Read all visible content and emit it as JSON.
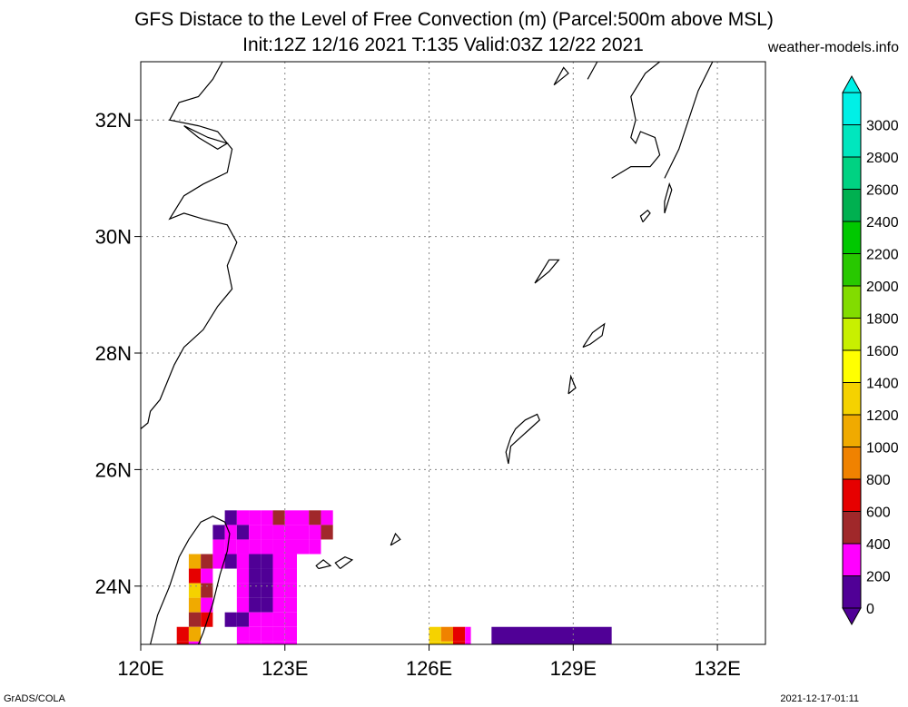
{
  "title_line1": "GFS Distace to the Level of Free Convection (m) (Parcel:500m above MSL)",
  "title_line2": "Init:12Z 12/16 2021 T:135 Valid:03Z 12/22 2021",
  "site": "weather-models.info",
  "footer_left": "GrADS/COLA",
  "footer_right": "2021-12-17-01:11",
  "map": {
    "lon_range": [
      120,
      133
    ],
    "lat_range": [
      23,
      33
    ],
    "lon_ticks": [
      {
        "v": 120,
        "label": "120E"
      },
      {
        "v": 123,
        "label": "123E"
      },
      {
        "v": 126,
        "label": "126E"
      },
      {
        "v": 129,
        "label": "129E"
      },
      {
        "v": 132,
        "label": "132E"
      }
    ],
    "lat_ticks": [
      {
        "v": 24,
        "label": "24N"
      },
      {
        "v": 26,
        "label": "26N"
      },
      {
        "v": 28,
        "label": "28N"
      },
      {
        "v": 30,
        "label": "30N"
      },
      {
        "v": 32,
        "label": "32N"
      }
    ],
    "grid": "dotted"
  },
  "colorbar": {
    "levels": [
      0,
      200,
      400,
      600,
      800,
      1000,
      1200,
      1400,
      1600,
      1800,
      2000,
      2200,
      2400,
      2600,
      2800,
      3000
    ],
    "labels": [
      "0",
      "200",
      "400",
      "600",
      "800",
      "1000",
      "1200",
      "1400",
      "1600",
      "1800",
      "2000",
      "2200",
      "2400",
      "2600",
      "2800",
      "3000"
    ],
    "colors": [
      "#500096",
      "#ff00ff",
      "#a0282a",
      "#e60000",
      "#f08200",
      "#f0aa00",
      "#f5d200",
      "#ffff00",
      "#c8f000",
      "#82dc00",
      "#28c800",
      "#00c800",
      "#00b050",
      "#00d282",
      "#00e6be",
      "#00f0e6"
    ]
  },
  "cells": [
    {
      "lon": 121.0,
      "lat": 24.3,
      "w": 0.25,
      "h": 0.25,
      "c": "#f0aa00"
    },
    {
      "lon": 121.25,
      "lat": 24.3,
      "w": 0.25,
      "h": 0.25,
      "c": "#a0282a"
    },
    {
      "lon": 121.0,
      "lat": 24.05,
      "w": 0.25,
      "h": 0.25,
      "c": "#e60000"
    },
    {
      "lon": 121.25,
      "lat": 24.05,
      "w": 0.25,
      "h": 0.25,
      "c": "#ff00ff"
    },
    {
      "lon": 121.0,
      "lat": 23.8,
      "w": 0.25,
      "h": 0.25,
      "c": "#f5d200"
    },
    {
      "lon": 121.25,
      "lat": 23.8,
      "w": 0.25,
      "h": 0.25,
      "c": "#a0282a"
    },
    {
      "lon": 121.0,
      "lat": 23.55,
      "w": 0.25,
      "h": 0.25,
      "c": "#f0aa00"
    },
    {
      "lon": 121.25,
      "lat": 23.55,
      "w": 0.25,
      "h": 0.25,
      "c": "#ff00ff"
    },
    {
      "lon": 121.0,
      "lat": 23.3,
      "w": 0.25,
      "h": 0.25,
      "c": "#a0282a"
    },
    {
      "lon": 121.25,
      "lat": 23.3,
      "w": 0.25,
      "h": 0.25,
      "c": "#e60000"
    },
    {
      "lon": 120.75,
      "lat": 23.05,
      "w": 0.25,
      "h": 0.25,
      "c": "#e60000"
    },
    {
      "lon": 121.0,
      "lat": 23.05,
      "w": 0.25,
      "h": 0.25,
      "c": "#f0aa00"
    },
    {
      "lon": 120.75,
      "lat": 22.8,
      "w": 0.25,
      "h": 0.25,
      "c": "#e60000"
    },
    {
      "lon": 121.0,
      "lat": 22.8,
      "w": 0.25,
      "h": 0.25,
      "c": "#ff00ff"
    },
    {
      "lon": 121.5,
      "lat": 24.55,
      "w": 0.25,
      "h": 0.25,
      "c": "#ff00ff"
    },
    {
      "lon": 121.75,
      "lat": 24.55,
      "w": 0.25,
      "h": 0.25,
      "c": "#ff00ff"
    },
    {
      "lon": 121.5,
      "lat": 24.8,
      "w": 0.25,
      "h": 0.25,
      "c": "#500096"
    },
    {
      "lon": 121.75,
      "lat": 24.8,
      "w": 0.25,
      "h": 0.25,
      "c": "#ff00ff"
    },
    {
      "lon": 121.5,
      "lat": 24.3,
      "w": 0.25,
      "h": 0.25,
      "c": "#ff00ff"
    },
    {
      "lon": 121.75,
      "lat": 24.3,
      "w": 0.25,
      "h": 0.25,
      "c": "#500096"
    },
    {
      "lon": 121.75,
      "lat": 25.05,
      "w": 0.25,
      "h": 0.25,
      "c": "#500096"
    },
    {
      "lon": 122.0,
      "lat": 25.05,
      "w": 0.25,
      "h": 0.25,
      "c": "#ff00ff"
    },
    {
      "lon": 122.25,
      "lat": 25.05,
      "w": 0.25,
      "h": 0.25,
      "c": "#ff00ff"
    },
    {
      "lon": 122.5,
      "lat": 25.05,
      "w": 0.25,
      "h": 0.25,
      "c": "#ff00ff"
    },
    {
      "lon": 122.75,
      "lat": 25.05,
      "w": 0.25,
      "h": 0.25,
      "c": "#a0282a"
    },
    {
      "lon": 123.0,
      "lat": 25.05,
      "w": 0.25,
      "h": 0.25,
      "c": "#ff00ff"
    },
    {
      "lon": 123.25,
      "lat": 25.05,
      "w": 0.25,
      "h": 0.25,
      "c": "#ff00ff"
    },
    {
      "lon": 123.5,
      "lat": 25.05,
      "w": 0.25,
      "h": 0.25,
      "c": "#a0282a"
    },
    {
      "lon": 123.75,
      "lat": 25.05,
      "w": 0.25,
      "h": 0.25,
      "c": "#ff00ff"
    },
    {
      "lon": 122.0,
      "lat": 24.8,
      "w": 0.25,
      "h": 0.25,
      "c": "#500096"
    },
    {
      "lon": 122.25,
      "lat": 24.8,
      "w": 0.25,
      "h": 0.25,
      "c": "#ff00ff"
    },
    {
      "lon": 122.5,
      "lat": 24.8,
      "w": 0.25,
      "h": 0.25,
      "c": "#ff00ff"
    },
    {
      "lon": 122.75,
      "lat": 24.8,
      "w": 0.25,
      "h": 0.25,
      "c": "#ff00ff"
    },
    {
      "lon": 123.0,
      "lat": 24.8,
      "w": 0.25,
      "h": 0.25,
      "c": "#ff00ff"
    },
    {
      "lon": 123.25,
      "lat": 24.8,
      "w": 0.25,
      "h": 0.25,
      "c": "#ff00ff"
    },
    {
      "lon": 123.5,
      "lat": 24.8,
      "w": 0.25,
      "h": 0.25,
      "c": "#ff00ff"
    },
    {
      "lon": 123.75,
      "lat": 24.8,
      "w": 0.25,
      "h": 0.25,
      "c": "#a0282a"
    },
    {
      "lon": 122.0,
      "lat": 24.55,
      "w": 0.25,
      "h": 0.25,
      "c": "#ff00ff"
    },
    {
      "lon": 122.25,
      "lat": 24.55,
      "w": 0.25,
      "h": 0.25,
      "c": "#ff00ff"
    },
    {
      "lon": 122.5,
      "lat": 24.55,
      "w": 0.25,
      "h": 0.25,
      "c": "#ff00ff"
    },
    {
      "lon": 122.75,
      "lat": 24.55,
      "w": 0.25,
      "h": 0.25,
      "c": "#ff00ff"
    },
    {
      "lon": 123.0,
      "lat": 24.55,
      "w": 0.25,
      "h": 0.25,
      "c": "#ff00ff"
    },
    {
      "lon": 123.25,
      "lat": 24.55,
      "w": 0.25,
      "h": 0.25,
      "c": "#ff00ff"
    },
    {
      "lon": 123.5,
      "lat": 24.55,
      "w": 0.25,
      "h": 0.25,
      "c": "#ff00ff"
    },
    {
      "lon": 122.0,
      "lat": 24.3,
      "w": 0.25,
      "h": 0.25,
      "c": "#ff00ff"
    },
    {
      "lon": 122.25,
      "lat": 24.3,
      "w": 0.25,
      "h": 0.25,
      "c": "#500096"
    },
    {
      "lon": 122.5,
      "lat": 24.3,
      "w": 0.25,
      "h": 0.25,
      "c": "#500096"
    },
    {
      "lon": 122.75,
      "lat": 24.3,
      "w": 0.25,
      "h": 0.25,
      "c": "#ff00ff"
    },
    {
      "lon": 123.0,
      "lat": 24.3,
      "w": 0.25,
      "h": 0.25,
      "c": "#ff00ff"
    },
    {
      "lon": 122.0,
      "lat": 24.05,
      "w": 0.25,
      "h": 0.25,
      "c": "#ff00ff"
    },
    {
      "lon": 122.25,
      "lat": 24.05,
      "w": 0.25,
      "h": 0.25,
      "c": "#500096"
    },
    {
      "lon": 122.5,
      "lat": 24.05,
      "w": 0.25,
      "h": 0.25,
      "c": "#500096"
    },
    {
      "lon": 122.75,
      "lat": 24.05,
      "w": 0.25,
      "h": 0.25,
      "c": "#ff00ff"
    },
    {
      "lon": 123.0,
      "lat": 24.05,
      "w": 0.25,
      "h": 0.25,
      "c": "#ff00ff"
    },
    {
      "lon": 122.0,
      "lat": 23.8,
      "w": 0.25,
      "h": 0.25,
      "c": "#ff00ff"
    },
    {
      "lon": 122.25,
      "lat": 23.8,
      "w": 0.25,
      "h": 0.25,
      "c": "#500096"
    },
    {
      "lon": 122.5,
      "lat": 23.8,
      "w": 0.25,
      "h": 0.25,
      "c": "#500096"
    },
    {
      "lon": 122.75,
      "lat": 23.8,
      "w": 0.25,
      "h": 0.25,
      "c": "#ff00ff"
    },
    {
      "lon": 123.0,
      "lat": 23.8,
      "w": 0.25,
      "h": 0.25,
      "c": "#ff00ff"
    },
    {
      "lon": 122.0,
      "lat": 23.55,
      "w": 0.25,
      "h": 0.25,
      "c": "#ff00ff"
    },
    {
      "lon": 122.25,
      "lat": 23.55,
      "w": 0.25,
      "h": 0.25,
      "c": "#500096"
    },
    {
      "lon": 122.5,
      "lat": 23.55,
      "w": 0.25,
      "h": 0.25,
      "c": "#500096"
    },
    {
      "lon": 122.75,
      "lat": 23.55,
      "w": 0.25,
      "h": 0.25,
      "c": "#ff00ff"
    },
    {
      "lon": 123.0,
      "lat": 23.55,
      "w": 0.25,
      "h": 0.25,
      "c": "#ff00ff"
    },
    {
      "lon": 121.75,
      "lat": 23.3,
      "w": 0.25,
      "h": 0.25,
      "c": "#500096"
    },
    {
      "lon": 122.0,
      "lat": 23.3,
      "w": 0.25,
      "h": 0.25,
      "c": "#500096"
    },
    {
      "lon": 122.25,
      "lat": 23.3,
      "w": 0.25,
      "h": 0.25,
      "c": "#ff00ff"
    },
    {
      "lon": 122.5,
      "lat": 23.3,
      "w": 0.25,
      "h": 0.25,
      "c": "#ff00ff"
    },
    {
      "lon": 122.75,
      "lat": 23.3,
      "w": 0.25,
      "h": 0.25,
      "c": "#ff00ff"
    },
    {
      "lon": 123.0,
      "lat": 23.3,
      "w": 0.25,
      "h": 0.25,
      "c": "#ff00ff"
    },
    {
      "lon": 122.0,
      "lat": 23.05,
      "w": 0.25,
      "h": 0.25,
      "c": "#ff00ff"
    },
    {
      "lon": 122.25,
      "lat": 23.05,
      "w": 0.25,
      "h": 0.25,
      "c": "#ff00ff"
    },
    {
      "lon": 122.5,
      "lat": 23.05,
      "w": 0.25,
      "h": 0.25,
      "c": "#ff00ff"
    },
    {
      "lon": 122.75,
      "lat": 23.05,
      "w": 0.25,
      "h": 0.25,
      "c": "#ff00ff"
    },
    {
      "lon": 123.0,
      "lat": 23.05,
      "w": 0.25,
      "h": 0.25,
      "c": "#ff00ff"
    },
    {
      "lon": 122.0,
      "lat": 22.8,
      "w": 0.25,
      "h": 0.25,
      "c": "#ff00ff"
    },
    {
      "lon": 122.25,
      "lat": 22.8,
      "w": 0.25,
      "h": 0.25,
      "c": "#ff00ff"
    },
    {
      "lon": 122.5,
      "lat": 22.8,
      "w": 0.25,
      "h": 0.25,
      "c": "#ff00ff"
    },
    {
      "lon": 122.75,
      "lat": 22.8,
      "w": 0.25,
      "h": 0.25,
      "c": "#ff00ff"
    },
    {
      "lon": 123.0,
      "lat": 22.8,
      "w": 0.25,
      "h": 0.25,
      "c": "#ff00ff"
    },
    {
      "lon": 126.0,
      "lat": 23.05,
      "w": 0.25,
      "h": 0.25,
      "c": "#f5d200"
    },
    {
      "lon": 126.25,
      "lat": 23.05,
      "w": 0.25,
      "h": 0.25,
      "c": "#f08200"
    },
    {
      "lon": 126.5,
      "lat": 23.05,
      "w": 0.25,
      "h": 0.25,
      "c": "#e60000"
    },
    {
      "lon": 126.75,
      "lat": 23.05,
      "w": 0.12,
      "h": 0.25,
      "c": "#ff00ff"
    },
    {
      "lon": 126.0,
      "lat": 22.8,
      "w": 0.25,
      "h": 0.25,
      "c": "#f5d200"
    },
    {
      "lon": 126.25,
      "lat": 22.8,
      "w": 0.25,
      "h": 0.25,
      "c": "#f5d200"
    },
    {
      "lon": 126.5,
      "lat": 22.8,
      "w": 0.25,
      "h": 0.25,
      "c": "#e60000"
    },
    {
      "lon": 126.75,
      "lat": 22.8,
      "w": 0.12,
      "h": 0.25,
      "c": "#ff00ff"
    },
    {
      "lon": 127.3,
      "lat": 22.8,
      "w": 2.5,
      "h": 0.5,
      "c": "#500096"
    },
    {
      "lon": 127.75,
      "lat": 22.8,
      "w": 0.2,
      "h": 0.15,
      "c": "#ff00ff"
    }
  ],
  "coastlines": [
    [
      [
        120.0,
        26.7
      ],
      [
        120.15,
        26.8
      ],
      [
        120.2,
        27.0
      ],
      [
        120.4,
        27.2
      ],
      [
        120.55,
        27.5
      ],
      [
        120.7,
        27.8
      ],
      [
        120.9,
        28.1
      ],
      [
        121.3,
        28.4
      ],
      [
        121.6,
        28.8
      ],
      [
        121.9,
        29.1
      ],
      [
        121.8,
        29.5
      ],
      [
        122.0,
        29.9
      ],
      [
        121.8,
        30.2
      ],
      [
        121.3,
        30.3
      ],
      [
        120.9,
        30.4
      ],
      [
        120.6,
        30.3
      ],
      [
        120.9,
        30.7
      ],
      [
        121.3,
        30.9
      ],
      [
        121.8,
        31.1
      ],
      [
        121.9,
        31.5
      ],
      [
        121.6,
        31.8
      ],
      [
        121.2,
        31.9
      ],
      [
        120.6,
        32.0
      ],
      [
        120.8,
        32.3
      ],
      [
        121.2,
        32.4
      ],
      [
        121.5,
        32.7
      ],
      [
        121.7,
        33.0
      ]
    ],
    [
      [
        120.9,
        31.9
      ],
      [
        121.4,
        31.7
      ],
      [
        121.8,
        31.6
      ],
      [
        121.6,
        31.5
      ],
      [
        121.2,
        31.7
      ],
      [
        120.9,
        31.9
      ]
    ],
    [
      [
        121.75,
        25.1
      ],
      [
        121.5,
        25.2
      ],
      [
        121.25,
        25.1
      ],
      [
        121.0,
        24.8
      ],
      [
        120.8,
        24.5
      ],
      [
        120.6,
        24.0
      ],
      [
        120.35,
        23.5
      ],
      [
        120.2,
        23.0
      ]
    ],
    [
      [
        121.75,
        25.1
      ],
      [
        121.85,
        24.9
      ],
      [
        121.8,
        24.6
      ],
      [
        121.65,
        24.2
      ],
      [
        121.5,
        23.7
      ],
      [
        121.3,
        23.2
      ],
      [
        121.2,
        23.0
      ]
    ],
    [
      [
        127.65,
        26.1
      ],
      [
        127.7,
        26.4
      ],
      [
        127.9,
        26.55
      ],
      [
        128.1,
        26.7
      ],
      [
        128.3,
        26.85
      ],
      [
        128.25,
        26.95
      ],
      [
        128.0,
        26.85
      ],
      [
        127.8,
        26.7
      ],
      [
        127.7,
        26.55
      ],
      [
        127.6,
        26.3
      ],
      [
        127.65,
        26.1
      ]
    ],
    [
      [
        129.2,
        28.1
      ],
      [
        129.4,
        28.35
      ],
      [
        129.65,
        28.5
      ],
      [
        129.6,
        28.3
      ],
      [
        129.35,
        28.15
      ],
      [
        129.2,
        28.1
      ]
    ],
    [
      [
        129.8,
        31.0
      ],
      [
        130.2,
        31.2
      ],
      [
        130.6,
        31.2
      ],
      [
        130.8,
        31.4
      ],
      [
        130.7,
        31.7
      ],
      [
        130.4,
        31.8
      ],
      [
        130.3,
        31.6
      ],
      [
        130.2,
        31.7
      ],
      [
        130.3,
        32.0
      ],
      [
        130.2,
        32.4
      ],
      [
        130.5,
        32.8
      ],
      [
        130.8,
        33.0
      ]
    ],
    [
      [
        130.9,
        31.0
      ],
      [
        131.2,
        31.5
      ],
      [
        131.4,
        32.0
      ],
      [
        131.6,
        32.5
      ],
      [
        131.9,
        33.0
      ]
    ],
    [
      [
        130.45,
        30.25
      ],
      [
        130.6,
        30.4
      ],
      [
        130.55,
        30.45
      ],
      [
        130.4,
        30.35
      ],
      [
        130.45,
        30.25
      ]
    ],
    [
      [
        130.9,
        30.4
      ],
      [
        131.05,
        30.8
      ],
      [
        131.0,
        30.9
      ],
      [
        130.9,
        30.6
      ],
      [
        130.9,
        30.4
      ]
    ],
    [
      [
        124.15,
        24.3
      ],
      [
        124.4,
        24.45
      ],
      [
        124.25,
        24.5
      ],
      [
        124.05,
        24.4
      ],
      [
        124.15,
        24.3
      ]
    ],
    [
      [
        123.7,
        24.3
      ],
      [
        123.95,
        24.35
      ],
      [
        123.8,
        24.45
      ],
      [
        123.65,
        24.35
      ],
      [
        123.7,
        24.3
      ]
    ],
    [
      [
        125.2,
        24.7
      ],
      [
        125.4,
        24.8
      ],
      [
        125.3,
        24.9
      ],
      [
        125.2,
        24.7
      ]
    ],
    [
      [
        128.9,
        27.3
      ],
      [
        129.05,
        27.4
      ],
      [
        128.95,
        27.6
      ],
      [
        128.9,
        27.3
      ]
    ],
    [
      [
        128.2,
        29.2
      ],
      [
        128.5,
        29.6
      ],
      [
        128.7,
        29.6
      ],
      [
        128.5,
        29.4
      ],
      [
        128.2,
        29.2
      ]
    ],
    [
      [
        128.6,
        32.6
      ],
      [
        128.9,
        32.8
      ],
      [
        128.8,
        32.9
      ],
      [
        128.6,
        32.6
      ]
    ],
    [
      [
        129.3,
        32.7
      ],
      [
        129.5,
        33.0
      ]
    ]
  ]
}
